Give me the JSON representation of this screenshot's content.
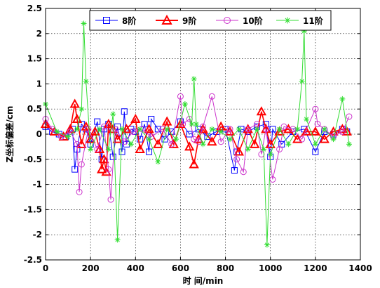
{
  "chart_data": {
    "type": "line",
    "title": "",
    "xlabel": "时 间/min",
    "ylabel": "Z坐标偏差/cm",
    "xlim": [
      0,
      1400
    ],
    "ylim": [
      -2.5,
      2.5
    ],
    "xticks": [
      0,
      200,
      400,
      600,
      800,
      1000,
      1200,
      1400
    ],
    "yticks": [
      2.5,
      2,
      1.5,
      1,
      0.5,
      0,
      -0.5,
      -1,
      -1.5,
      -2,
      -2.5
    ],
    "xtick_labels": [
      "0",
      "200",
      "400",
      "600",
      "800",
      "1000",
      "1200",
      "1400"
    ],
    "ytick_labels": [
      "2.5",
      "2",
      "1.5",
      "1",
      "0.5",
      "0",
      "-0.5",
      "-1",
      "-1.5",
      "-2",
      "-2.5"
    ],
    "grid": true,
    "legend_position": "top",
    "series": [
      {
        "name": "8阶",
        "color": "#0000ff",
        "marker": "square",
        "x": [
          0,
          30,
          60,
          90,
          120,
          130,
          140,
          160,
          180,
          200,
          230,
          250,
          260,
          280,
          300,
          320,
          340,
          350,
          360,
          380,
          400,
          420,
          440,
          460,
          470,
          500,
          530,
          560,
          600,
          640,
          680,
          720,
          760,
          800,
          840,
          850,
          870,
          900,
          940,
          980,
          1000,
          1010,
          1050,
          1100,
          1150,
          1200,
          1240,
          1280,
          1320,
          1340
        ],
        "y": [
          0.15,
          0.05,
          0,
          -0.05,
          0.1,
          -0.7,
          -0.3,
          0.2,
          0.1,
          -0.2,
          0.25,
          -0.5,
          0.1,
          0.2,
          -0.45,
          0.15,
          -0.35,
          0.45,
          -0.2,
          0.1,
          0.05,
          -0.1,
          0.2,
          -0.35,
          0.3,
          0.1,
          -0.1,
          0.05,
          0.25,
          0,
          0.1,
          -0.05,
          0.05,
          0.1,
          -0.72,
          -0.35,
          0.1,
          0.05,
          0.15,
          0.2,
          -0.45,
          0.1,
          -0.2,
          0.05,
          0.1,
          -0.35,
          0.05,
          0,
          0.1,
          0.05
        ]
      },
      {
        "name": "9阶",
        "color": "#ff0000",
        "marker": "triangle",
        "x": [
          0,
          40,
          80,
          110,
          130,
          140,
          160,
          180,
          200,
          220,
          240,
          250,
          260,
          270,
          280,
          300,
          320,
          360,
          400,
          420,
          460,
          500,
          540,
          570,
          600,
          640,
          660,
          680,
          700,
          740,
          780,
          820,
          860,
          900,
          930,
          960,
          980,
          1000,
          1040,
          1080,
          1120,
          1160,
          1200,
          1240,
          1280,
          1320,
          1340
        ],
        "y": [
          0.2,
          0.05,
          -0.05,
          0.1,
          0.6,
          0.3,
          -0.2,
          0.15,
          -0.1,
          0.05,
          -0.3,
          -0.7,
          -0.5,
          -0.75,
          0.2,
          0.1,
          -0.1,
          0.1,
          0.3,
          -0.3,
          0.1,
          -0.2,
          0.25,
          -0.2,
          0.2,
          -0.25,
          -0.6,
          -0.1,
          0.1,
          -0.15,
          0.15,
          0.05,
          -0.35,
          0.1,
          -0.2,
          0.45,
          0.1,
          -0.2,
          0.05,
          0.1,
          -0.1,
          0.05,
          0.05,
          -0.1,
          0.05,
          0.1,
          0.05
        ]
      },
      {
        "name": "10阶",
        "color": "#cc33cc",
        "marker": "circle",
        "x": [
          0,
          30,
          70,
          110,
          140,
          150,
          160,
          190,
          230,
          260,
          280,
          290,
          310,
          350,
          390,
          430,
          470,
          520,
          560,
          600,
          610,
          640,
          660,
          680,
          700,
          740,
          780,
          820,
          850,
          880,
          900,
          940,
          960,
          980,
          1010,
          1040,
          1060,
          1100,
          1140,
          1200,
          1210,
          1240,
          1280,
          1320,
          1350
        ],
        "y": [
          0.3,
          0.1,
          -0.05,
          0.05,
          -0.2,
          -1.15,
          -0.6,
          0.1,
          -0.3,
          0.15,
          -0.7,
          -1.3,
          0.1,
          -0.15,
          0.05,
          0.1,
          -0.05,
          0.1,
          -0.2,
          0.75,
          0.2,
          0.3,
          -0.1,
          -0.15,
          0.15,
          0.75,
          -0.15,
          0.1,
          -0.5,
          -0.75,
          0.1,
          0.2,
          -0.4,
          0.1,
          -0.9,
          -0.3,
          0.15,
          0.1,
          -0.1,
          0.5,
          0.2,
          0.1,
          -0.05,
          0.05,
          0.35
        ]
      },
      {
        "name": "11阶",
        "color": "#33dd33",
        "marker": "star",
        "x": [
          0,
          50,
          100,
          140,
          160,
          170,
          180,
          200,
          240,
          280,
          300,
          320,
          340,
          380,
          420,
          460,
          500,
          540,
          580,
          620,
          650,
          660,
          670,
          700,
          740,
          780,
          820,
          860,
          900,
          940,
          970,
          985,
          1000,
          1040,
          1080,
          1120,
          1140,
          1150,
          1160,
          1200,
          1240,
          1280,
          1320,
          1350
        ],
        "y": [
          0.6,
          0.05,
          -0.05,
          0.1,
          0.5,
          2.2,
          1.05,
          -0.3,
          0.1,
          -0.3,
          0.4,
          -2.1,
          0.1,
          -0.2,
          0.1,
          -0.1,
          -0.55,
          0.1,
          -0.1,
          0.6,
          0.2,
          1.1,
          0.2,
          -0.2,
          0.1,
          0.05,
          -0.1,
          0.1,
          -0.3,
          0.1,
          -0.3,
          -2.2,
          -0.4,
          0.1,
          -0.2,
          0.1,
          1.05,
          2.05,
          0.3,
          -0.2,
          0.1,
          -0.1,
          0.7,
          -0.2
        ]
      }
    ]
  }
}
